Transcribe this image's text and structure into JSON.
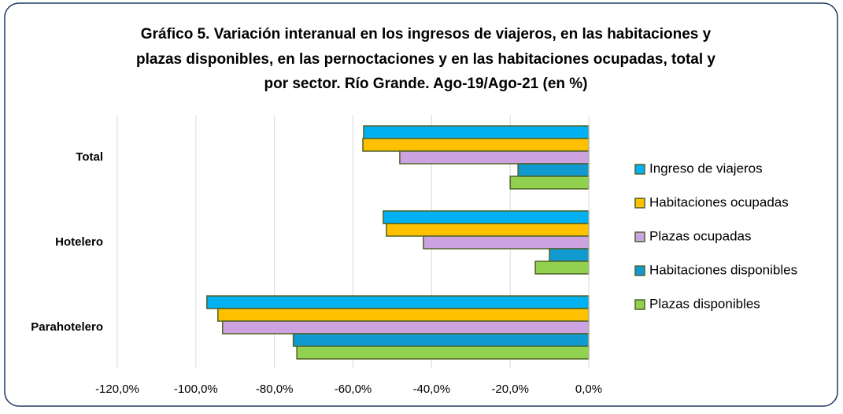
{
  "chart_data": {
    "type": "bar",
    "orientation": "horizontal",
    "title": [
      "Gráfico 5. Variación interanual en los ingresos de viajeros, en las habitaciones y",
      "plazas disponibles, en las pernoctaciones y en las habitaciones ocupadas, total y",
      "por sector. Río Grande. Ago-19/Ago-21 (en %)"
    ],
    "categories": [
      "Total",
      "Hotelero",
      "Parahotelero"
    ],
    "series": [
      {
        "name": "Ingreso de viajeros",
        "color": "#00b0f0",
        "values": [
          -57.3,
          -52.3,
          -97.2
        ]
      },
      {
        "name": "Habitaciones ocupadas",
        "color": "#ffc000",
        "values": [
          -57.5,
          -51.5,
          -94.4
        ]
      },
      {
        "name": "Plazas ocupadas",
        "color": "#cca3e0",
        "values": [
          -48.1,
          -42.1,
          -93.2
        ]
      },
      {
        "name": "Habitaciones disponibles",
        "color": "#119ad0",
        "values": [
          -18.0,
          -10.0,
          -75.2
        ]
      },
      {
        "name": "Plazas disponibles",
        "color": "#92d050",
        "values": [
          -20.0,
          -13.6,
          -74.3
        ]
      }
    ],
    "xlim": [
      -120,
      0
    ],
    "xticks": [
      {
        "value": -120,
        "label": "-120,0%"
      },
      {
        "value": -100,
        "label": "-100,0%"
      },
      {
        "value": -80,
        "label": "-80,0%"
      },
      {
        "value": -60,
        "label": "-60,0%"
      },
      {
        "value": -40,
        "label": "-40,0%"
      },
      {
        "value": -20,
        "label": "-20,0%"
      },
      {
        "value": 0,
        "label": "0,0%"
      }
    ],
    "grid": true,
    "legend": "right"
  }
}
